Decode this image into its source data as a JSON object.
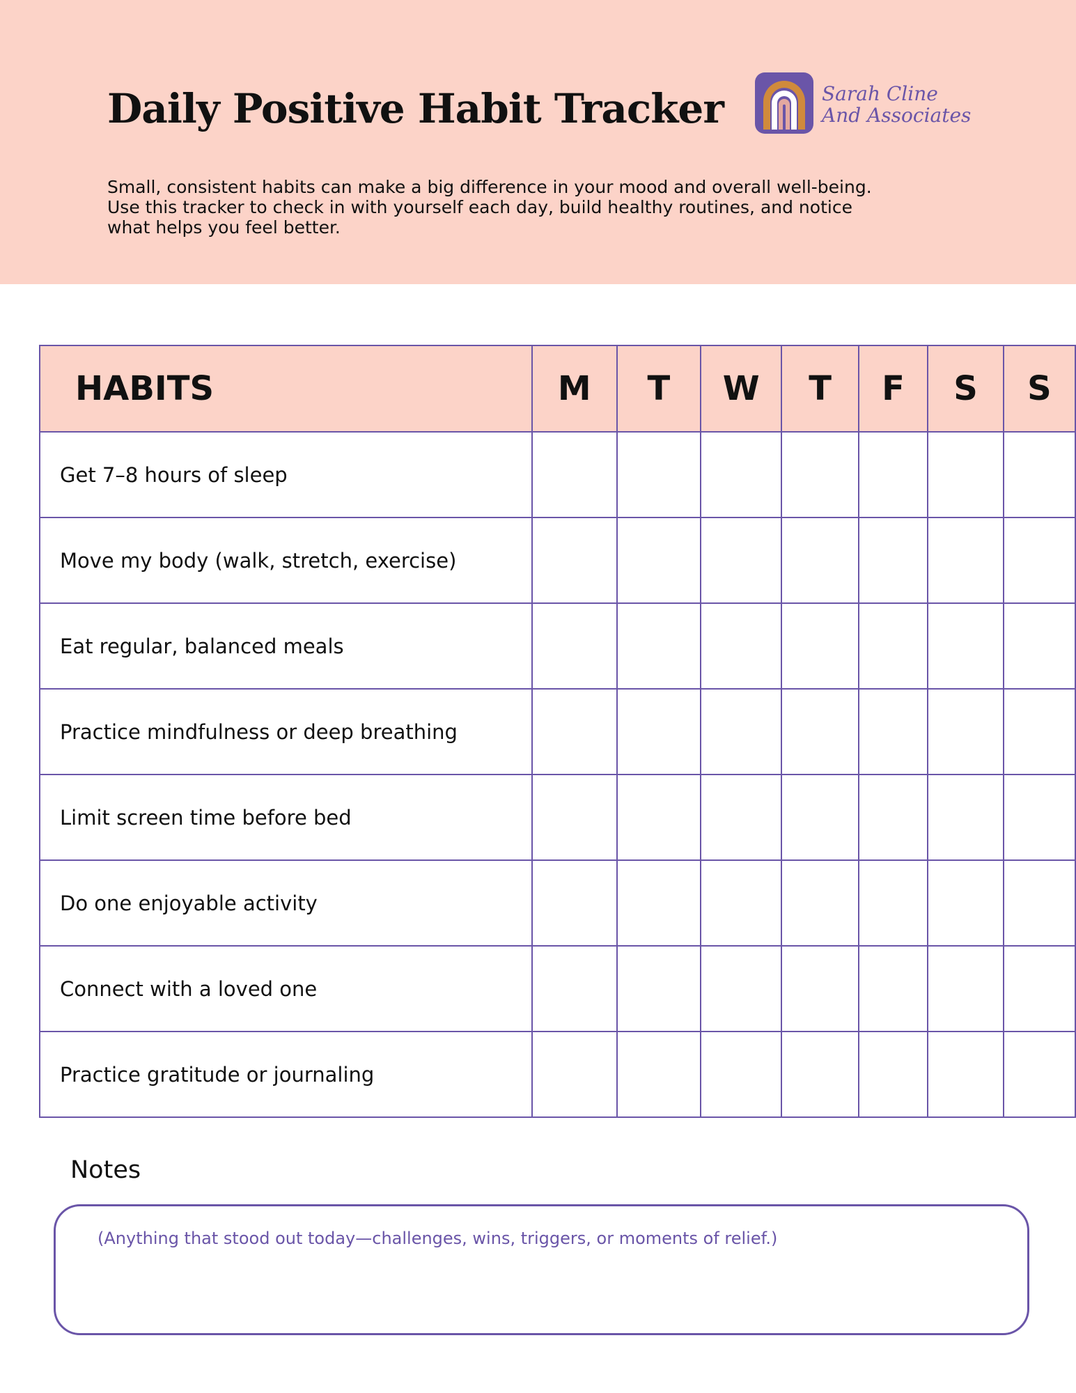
{
  "header": {
    "title": "Daily Positive Habit Tracker",
    "logo": {
      "line1": "Sarah Cline",
      "line2": "And Associates"
    },
    "description": [
      "Small, consistent habits can make a big difference in your mood and overall well-being.",
      "Use this tracker to check in with yourself each day, build healthy routines, and notice",
      "what helps you feel better."
    ]
  },
  "table": {
    "header": [
      "HABITS",
      "M",
      "T",
      "W",
      "T",
      "F",
      "S",
      "S"
    ],
    "rows": [
      "Get 7–8 hours of sleep",
      "Move my body (walk, stretch, exercise)",
      "Eat regular, balanced meals",
      "Practice mindfulness or deep breathing",
      "Limit screen time before bed",
      "Do one enjoyable activity",
      "Connect with a loved one",
      "Practice gratitude or journaling"
    ]
  },
  "notes": {
    "label": "Notes",
    "placeholder": "(Anything that stood out today—challenges, wins, triggers, or moments of relief.)"
  }
}
